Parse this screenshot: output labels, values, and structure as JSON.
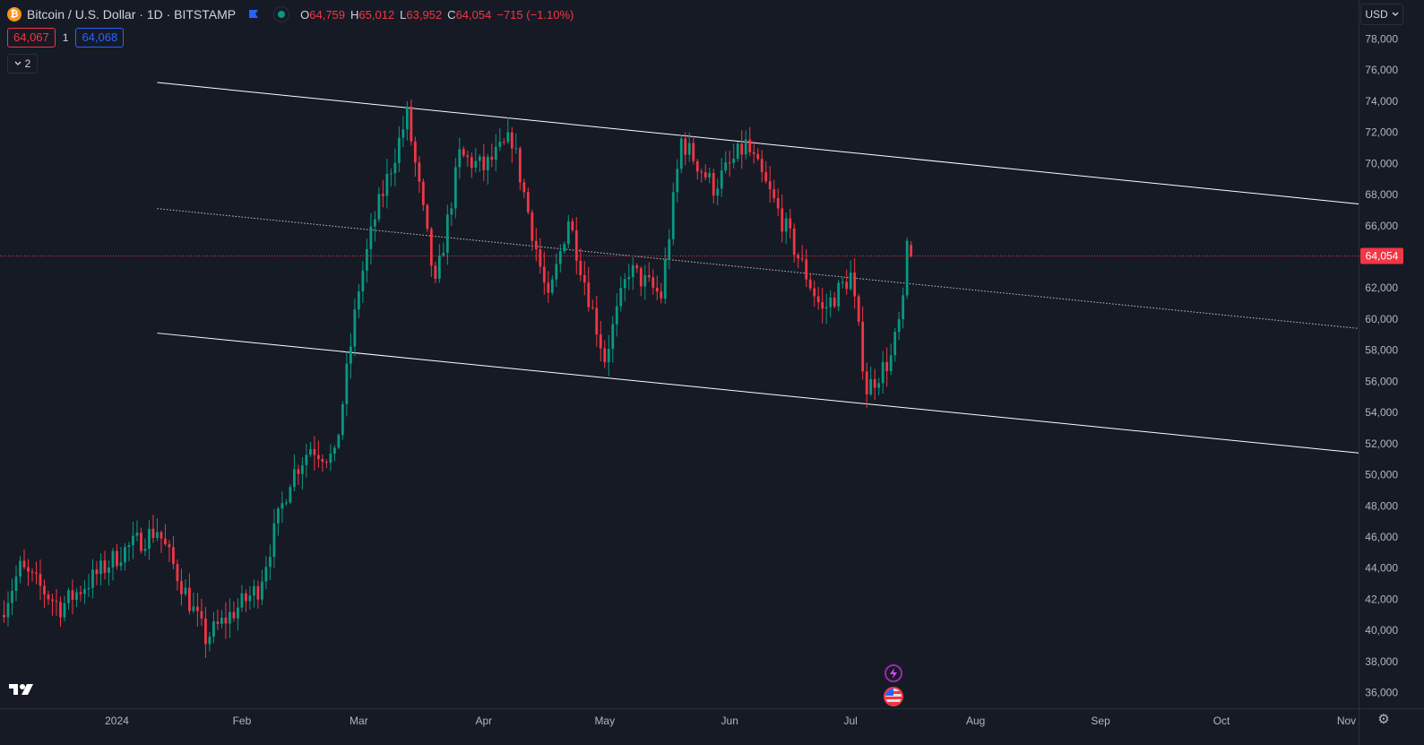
{
  "legend": {
    "coin_glyph": "₿",
    "title": "Bitcoin / U.S. Dollar · 1D · BITSTAMP",
    "ohlc": [
      {
        "k": "O",
        "v": "64,759"
      },
      {
        "k": "H",
        "v": "65,012"
      },
      {
        "k": "L",
        "v": "63,952"
      },
      {
        "k": "C",
        "v": "64,054"
      }
    ],
    "change": "−715 (−1.10%)"
  },
  "quotes": {
    "sell": "64,067",
    "spread": "1",
    "buy": "64,068"
  },
  "indicators_collapse": {
    "icon": "chevron-down-icon",
    "count": "2"
  },
  "currency": {
    "label": "USD",
    "icon": "chevron-down-icon"
  },
  "logo": "17",
  "settings": {
    "icon": "gear-icon",
    "glyph": "⚙"
  },
  "colors": {
    "background": "#161a25",
    "up": "#089981",
    "down": "#f23645",
    "grid_text": "#b2b5be",
    "channel": "#ffffff",
    "price_line": "#f23645"
  },
  "chart_data": {
    "type": "candlestick",
    "title": "Bitcoin / U.S. Dollar · 1D · BITSTAMP",
    "y_ticks": [
      36000,
      38000,
      40000,
      42000,
      44000,
      46000,
      48000,
      50000,
      52000,
      54000,
      56000,
      58000,
      60000,
      62000,
      64000,
      66000,
      68000,
      70000,
      72000,
      74000,
      76000,
      78000
    ],
    "ylim": [
      35000,
      80500
    ],
    "x_ticks": [
      {
        "date": "2024-01-01",
        "label": "2024"
      },
      {
        "date": "2024-02-01",
        "label": "Feb"
      },
      {
        "date": "2024-03-01",
        "label": "Mar"
      },
      {
        "date": "2024-04-01",
        "label": "Apr"
      },
      {
        "date": "2024-05-01",
        "label": "May"
      },
      {
        "date": "2024-06-01",
        "label": "Jun"
      },
      {
        "date": "2024-07-01",
        "label": "Jul"
      },
      {
        "date": "2024-08-01",
        "label": "Aug"
      },
      {
        "date": "2024-09-01",
        "label": "Sep"
      },
      {
        "date": "2024-10-01",
        "label": "Oct"
      },
      {
        "date": "2024-11-01",
        "label": "Nov"
      }
    ],
    "xlim": [
      "2023-12-03",
      "2024-11-04"
    ],
    "last_price": 64054,
    "last_price_label": "64,054",
    "anchors": [
      [
        "2023-12-03",
        41000
      ],
      [
        "2023-12-08",
        44000
      ],
      [
        "2023-12-18",
        41500
      ],
      [
        "2024-01-02",
        45000
      ],
      [
        "2024-01-11",
        46500
      ],
      [
        "2024-01-23",
        39500
      ],
      [
        "2024-02-05",
        42700
      ],
      [
        "2024-02-13",
        49800
      ],
      [
        "2024-02-18",
        51800
      ],
      [
        "2024-02-24",
        51000
      ],
      [
        "2024-03-01",
        62000
      ],
      [
        "2024-03-05",
        66500
      ],
      [
        "2024-03-13",
        73100
      ],
      [
        "2024-03-20",
        62000
      ],
      [
        "2024-03-26",
        70500
      ],
      [
        "2024-04-01",
        69700
      ],
      [
        "2024-04-08",
        71600
      ],
      [
        "2024-04-17",
        61000
      ],
      [
        "2024-04-22",
        66500
      ],
      [
        "2024-05-01",
        57500
      ],
      [
        "2024-05-07",
        63200
      ],
      [
        "2024-05-15",
        61500
      ],
      [
        "2024-05-20",
        71500
      ],
      [
        "2024-05-28",
        68500
      ],
      [
        "2024-06-05",
        71200
      ],
      [
        "2024-06-12",
        67500
      ],
      [
        "2024-06-24",
        60500
      ],
      [
        "2024-07-01",
        62800
      ],
      [
        "2024-07-05",
        55500
      ],
      [
        "2024-07-11",
        57500
      ],
      [
        "2024-07-14",
        60800
      ],
      [
        "2024-07-15",
        64800
      ],
      [
        "2024-07-16",
        64054
      ]
    ],
    "final_candle": {
      "date": "2024-07-16",
      "open": 64759,
      "high": 65012,
      "low": 63952,
      "close": 64054
    },
    "channel": {
      "upper": [
        [
          "2024-01-11",
          75200
        ],
        [
          "2024-11-04",
          67400
        ]
      ],
      "middle": [
        [
          "2024-01-11",
          67100
        ],
        [
          "2024-11-04",
          59400
        ]
      ],
      "lower": [
        [
          "2024-01-11",
          59100
        ],
        [
          "2024-11-04",
          51400
        ]
      ]
    }
  }
}
